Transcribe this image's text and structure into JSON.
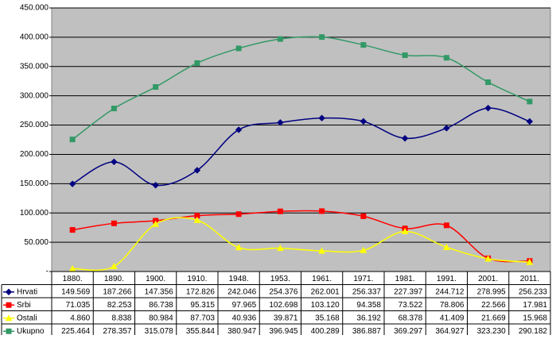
{
  "chart_data": {
    "type": "line",
    "categories": [
      "1880.",
      "1890.",
      "1900.",
      "1910.",
      "1948.",
      "1953.",
      "1961.",
      "1971.",
      "1981.",
      "1991.",
      "2001.",
      "2011."
    ],
    "series": [
      {
        "name": "Hrvati",
        "color": "#000080",
        "marker": "diamond",
        "values": [
          149569,
          187266,
          147356,
          172826,
          242046,
          254376,
          262001,
          256337,
          227397,
          244712,
          278995,
          256233
        ],
        "value_labels": [
          "149.569",
          "187.266",
          "147.356",
          "172.826",
          "242.046",
          "254.376",
          "262.001",
          "256.337",
          "227.397",
          "244.712",
          "278.995",
          "256.233"
        ]
      },
      {
        "name": "Srbi",
        "color": "#ff0000",
        "marker": "square",
        "values": [
          71035,
          82253,
          86738,
          95315,
          97965,
          102698,
          103120,
          94358,
          73522,
          78806,
          22566,
          17981
        ],
        "value_labels": [
          "71.035",
          "82.253",
          "86.738",
          "95.315",
          "97.965",
          "102.698",
          "103.120",
          "94.358",
          "73.522",
          "78.806",
          "22.566",
          "17.981"
        ]
      },
      {
        "name": "Ostali",
        "color": "#ffff00",
        "marker": "triangle",
        "values": [
          4860,
          8838,
          80984,
          87703,
          40936,
          39871,
          35168,
          36192,
          68378,
          41409,
          21669,
          15968
        ],
        "value_labels": [
          "4.860",
          "8.838",
          "80.984",
          "87.703",
          "40.936",
          "39.871",
          "35.168",
          "36.192",
          "68.378",
          "41.409",
          "21.669",
          "15.968"
        ]
      },
      {
        "name": "Ukupno",
        "color": "#339966",
        "marker": "square",
        "values": [
          225464,
          278357,
          315078,
          355844,
          380947,
          396945,
          400289,
          386887,
          369297,
          364927,
          323230,
          290182
        ],
        "value_labels": [
          "225.464",
          "278.357",
          "315.078",
          "355.844",
          "380.947",
          "396.945",
          "400.289",
          "386.887",
          "369.297",
          "364.927",
          "323.230",
          "290.182"
        ]
      }
    ],
    "ylim": [
      0,
      450000
    ],
    "yticks": [
      {
        "value": 0,
        "label": "-"
      },
      {
        "value": 50000,
        "label": "50.000"
      },
      {
        "value": 100000,
        "label": "100.000"
      },
      {
        "value": 150000,
        "label": "150.000"
      },
      {
        "value": 200000,
        "label": "200.000"
      },
      {
        "value": 250000,
        "label": "250.000"
      },
      {
        "value": 300000,
        "label": "300.000"
      },
      {
        "value": 350000,
        "label": "350.000"
      },
      {
        "value": 400000,
        "label": "400.000"
      },
      {
        "value": 450000,
        "label": "450.000"
      }
    ],
    "grid": true,
    "background": "#c0c0c0"
  }
}
